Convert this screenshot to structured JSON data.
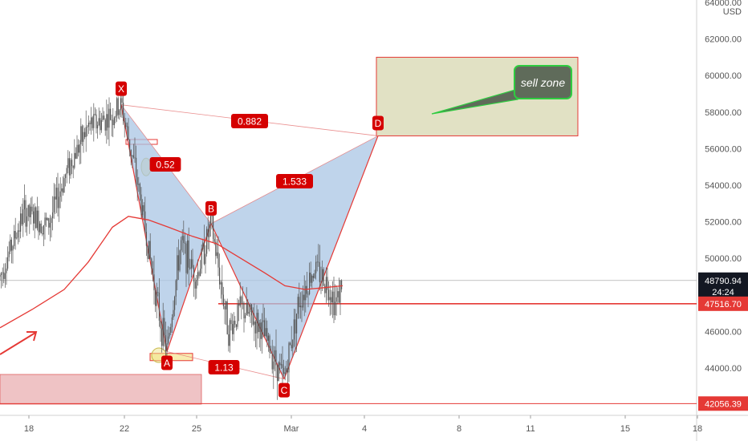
{
  "chart_data": {
    "type": "candlestick",
    "currency": "USD",
    "x_ticks": [
      "18",
      "22",
      "25",
      "Mar",
      "4",
      "8",
      "11",
      "15",
      "18"
    ],
    "y_ticks": [
      "44000.00",
      "46000.00",
      "48000.00",
      "50000.00",
      "52000.00",
      "54000.00",
      "56000.00",
      "58000.00",
      "60000.00",
      "62000.00",
      "64000.00"
    ],
    "ylim": [
      42000,
      64000
    ],
    "current_price": "48790.94",
    "countdown": "24:24",
    "horizontal_levels": [
      {
        "price": 47516.7,
        "label": "47516.70",
        "color": "#e53935"
      },
      {
        "price": 42056.39,
        "label": "42056.39",
        "color": "#e53935"
      }
    ],
    "pattern": {
      "points": [
        {
          "label": "X",
          "price": 58400
        },
        {
          "label": "A",
          "price": 44900
        },
        {
          "label": "B",
          "price": 51900
        },
        {
          "label": "C",
          "price": 43400
        },
        {
          "label": "D",
          "price": 56700
        }
      ],
      "ratios": [
        "0.882",
        "0.52",
        "1.533",
        "1.13"
      ]
    },
    "sell_zone": {
      "label": "sell zone",
      "price_top": 61000,
      "price_bottom": 56700
    },
    "colors": {
      "pattern_fill": "#aac6e4",
      "pattern_line": "#e53935",
      "zone_fill": "#dcdcba",
      "moving_average": "#e53935",
      "candles": "#555555"
    }
  }
}
